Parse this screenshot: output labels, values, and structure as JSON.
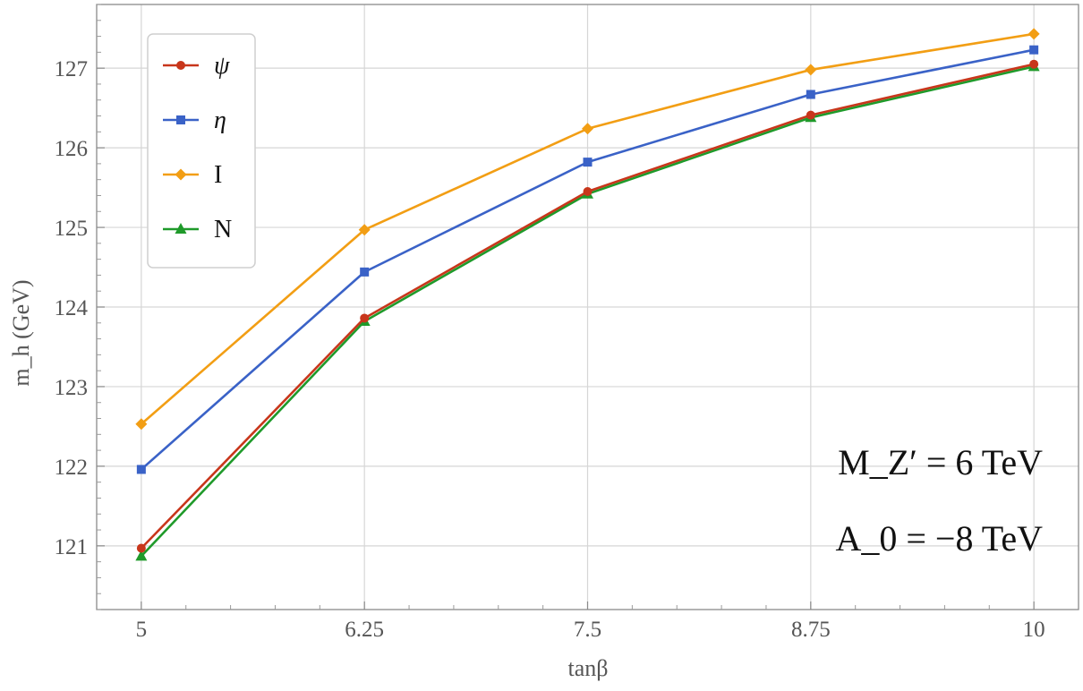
{
  "chart_data": {
    "type": "line",
    "xlabel": "tanβ",
    "ylabel": "m_h (GeV)",
    "x": [
      5,
      6.25,
      7.5,
      8.75,
      10
    ],
    "x_tick_labels": [
      "5",
      "6.25",
      "7.5",
      "8.75",
      "10"
    ],
    "y_ticks": [
      121,
      122,
      123,
      124,
      125,
      126,
      127
    ],
    "xlim": [
      4.75,
      10.25
    ],
    "ylim": [
      120.2,
      127.8
    ],
    "grid": true,
    "legend_position": "top-left",
    "series": [
      {
        "name": "ψ",
        "color": "#c8361b",
        "marker": "circle",
        "values": [
          120.97,
          123.86,
          125.45,
          126.41,
          127.05
        ]
      },
      {
        "name": "η",
        "color": "#3a62c7",
        "marker": "square",
        "values": [
          121.96,
          124.44,
          125.82,
          126.67,
          127.23
        ]
      },
      {
        "name": "I",
        "color": "#f29e14",
        "marker": "diamond",
        "values": [
          122.53,
          124.97,
          126.24,
          126.98,
          127.43
        ]
      },
      {
        "name": "N",
        "color": "#1f9a2a",
        "marker": "triangle",
        "values": [
          120.87,
          123.82,
          125.42,
          126.38,
          127.02
        ]
      }
    ],
    "annotations": [
      "M_Z′ = 6 TeV",
      "A_0 = −8 TeV"
    ]
  }
}
